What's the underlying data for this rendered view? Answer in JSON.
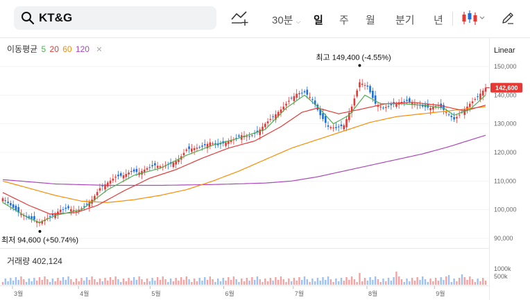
{
  "header": {
    "search_value": "KT&G",
    "interval": "30분",
    "periods": [
      "일",
      "주",
      "월",
      "분기",
      "년"
    ],
    "active_period": "일"
  },
  "indicator": {
    "name": "이동평균",
    "ma": [
      {
        "label": "5",
        "color": "#4caf50"
      },
      {
        "label": "20",
        "color": "#e53935"
      },
      {
        "label": "60",
        "color": "#fb8c00"
      },
      {
        "label": "120",
        "color": "#ab47bc"
      }
    ]
  },
  "scale_label": "Linear",
  "volume_label": "거래량 402,124",
  "chart_data": {
    "type": "candlestick",
    "x_labels": [
      "3월",
      "4월",
      "5월",
      "6월",
      "7월",
      "8월",
      "9월"
    ],
    "y_ticks": [
      "150,000",
      "140,000",
      "130,000",
      "120,000",
      "110,000",
      "100,000",
      "90,000"
    ],
    "y_tick_values": [
      150000,
      140000,
      130000,
      120000,
      110000,
      100000,
      90000
    ],
    "ylim": [
      87500,
      155000
    ],
    "current_price": 142600,
    "current_label": "142,600",
    "high_annotation": "최고 149,400 (-4.55%)",
    "low_annotation": "최저 94,600 (+50.74%)",
    "volume_ticks": [
      "1000k",
      "500k"
    ],
    "close_anchors": [
      [
        0,
        104000
      ],
      [
        3,
        101500
      ],
      [
        6,
        99000
      ],
      [
        9,
        97500
      ],
      [
        12,
        96500
      ],
      [
        14,
        95500
      ],
      [
        16,
        96500
      ],
      [
        19,
        98000
      ],
      [
        22,
        100000
      ],
      [
        25,
        100500
      ],
      [
        28,
        99500
      ],
      [
        31,
        101000
      ],
      [
        34,
        103500
      ],
      [
        37,
        107500
      ],
      [
        40,
        109500
      ],
      [
        43,
        111500
      ],
      [
        46,
        112000
      ],
      [
        49,
        113500
      ],
      [
        52,
        113000
      ],
      [
        55,
        114500
      ],
      [
        58,
        115500
      ],
      [
        61,
        115000
      ],
      [
        64,
        116000
      ],
      [
        67,
        117500
      ],
      [
        70,
        121000
      ],
      [
        73,
        121500
      ],
      [
        76,
        122000
      ],
      [
        79,
        123500
      ],
      [
        82,
        122500
      ],
      [
        85,
        123500
      ],
      [
        88,
        124500
      ],
      [
        91,
        126000
      ],
      [
        94,
        125500
      ],
      [
        97,
        127000
      ],
      [
        100,
        130000
      ],
      [
        103,
        132500
      ],
      [
        106,
        135000
      ],
      [
        109,
        138000
      ],
      [
        112,
        140500
      ],
      [
        115,
        141000
      ],
      [
        118,
        138500
      ],
      [
        121,
        133000
      ],
      [
        124,
        129000
      ],
      [
        127,
        128500
      ],
      [
        130,
        129500
      ],
      [
        133,
        136000
      ],
      [
        136,
        144500
      ],
      [
        139,
        143000
      ],
      [
        142,
        137000
      ],
      [
        145,
        135500
      ],
      [
        148,
        136500
      ],
      [
        151,
        137500
      ],
      [
        154,
        138000
      ],
      [
        157,
        137000
      ],
      [
        160,
        136000
      ],
      [
        163,
        135500
      ],
      [
        166,
        136500
      ],
      [
        169,
        134000
      ],
      [
        172,
        131500
      ],
      [
        175,
        134000
      ],
      [
        178,
        137000
      ],
      [
        181,
        139500
      ],
      [
        184,
        142600
      ]
    ],
    "ma5": [
      [
        0,
        102500
      ],
      [
        10,
        97000
      ],
      [
        14,
        95500
      ],
      [
        20,
        98000
      ],
      [
        30,
        100000
      ],
      [
        40,
        107000
      ],
      [
        50,
        112000
      ],
      [
        60,
        114500
      ],
      [
        70,
        119000
      ],
      [
        80,
        122500
      ],
      [
        90,
        125000
      ],
      [
        100,
        128000
      ],
      [
        108,
        135500
      ],
      [
        115,
        140000
      ],
      [
        120,
        136000
      ],
      [
        126,
        130000
      ],
      [
        132,
        133000
      ],
      [
        138,
        140000
      ],
      [
        144,
        137000
      ],
      [
        152,
        137000
      ],
      [
        160,
        136500
      ],
      [
        168,
        135500
      ],
      [
        172,
        133000
      ],
      [
        178,
        135000
      ],
      [
        184,
        140000
      ]
    ],
    "ma20": [
      [
        0,
        106000
      ],
      [
        10,
        101500
      ],
      [
        18,
        98500
      ],
      [
        28,
        99000
      ],
      [
        36,
        101500
      ],
      [
        46,
        106500
      ],
      [
        56,
        111000
      ],
      [
        66,
        114000
      ],
      [
        76,
        118000
      ],
      [
        86,
        121500
      ],
      [
        96,
        124000
      ],
      [
        106,
        129000
      ],
      [
        114,
        134000
      ],
      [
        120,
        135500
      ],
      [
        128,
        133500
      ],
      [
        136,
        135000
      ],
      [
        146,
        137000
      ],
      [
        156,
        137500
      ],
      [
        166,
        136500
      ],
      [
        176,
        134500
      ],
      [
        184,
        136500
      ]
    ],
    "ma60": [
      [
        0,
        110000
      ],
      [
        10,
        107500
      ],
      [
        20,
        105000
      ],
      [
        30,
        103000
      ],
      [
        40,
        102500
      ],
      [
        50,
        103500
      ],
      [
        60,
        105000
      ],
      [
        70,
        107000
      ],
      [
        80,
        110000
      ],
      [
        90,
        113500
      ],
      [
        100,
        117500
      ],
      [
        110,
        121500
      ],
      [
        120,
        124500
      ],
      [
        130,
        127500
      ],
      [
        140,
        130500
      ],
      [
        150,
        132500
      ],
      [
        160,
        133500
      ],
      [
        170,
        134500
      ],
      [
        184,
        136000
      ]
    ],
    "ma120": [
      [
        0,
        110500
      ],
      [
        20,
        109000
      ],
      [
        40,
        108500
      ],
      [
        60,
        108500
      ],
      [
        80,
        108800
      ],
      [
        100,
        109300
      ],
      [
        110,
        110000
      ],
      [
        120,
        111500
      ],
      [
        130,
        113500
      ],
      [
        140,
        115500
      ],
      [
        150,
        117500
      ],
      [
        160,
        119500
      ],
      [
        170,
        122000
      ],
      [
        184,
        126000
      ]
    ]
  }
}
